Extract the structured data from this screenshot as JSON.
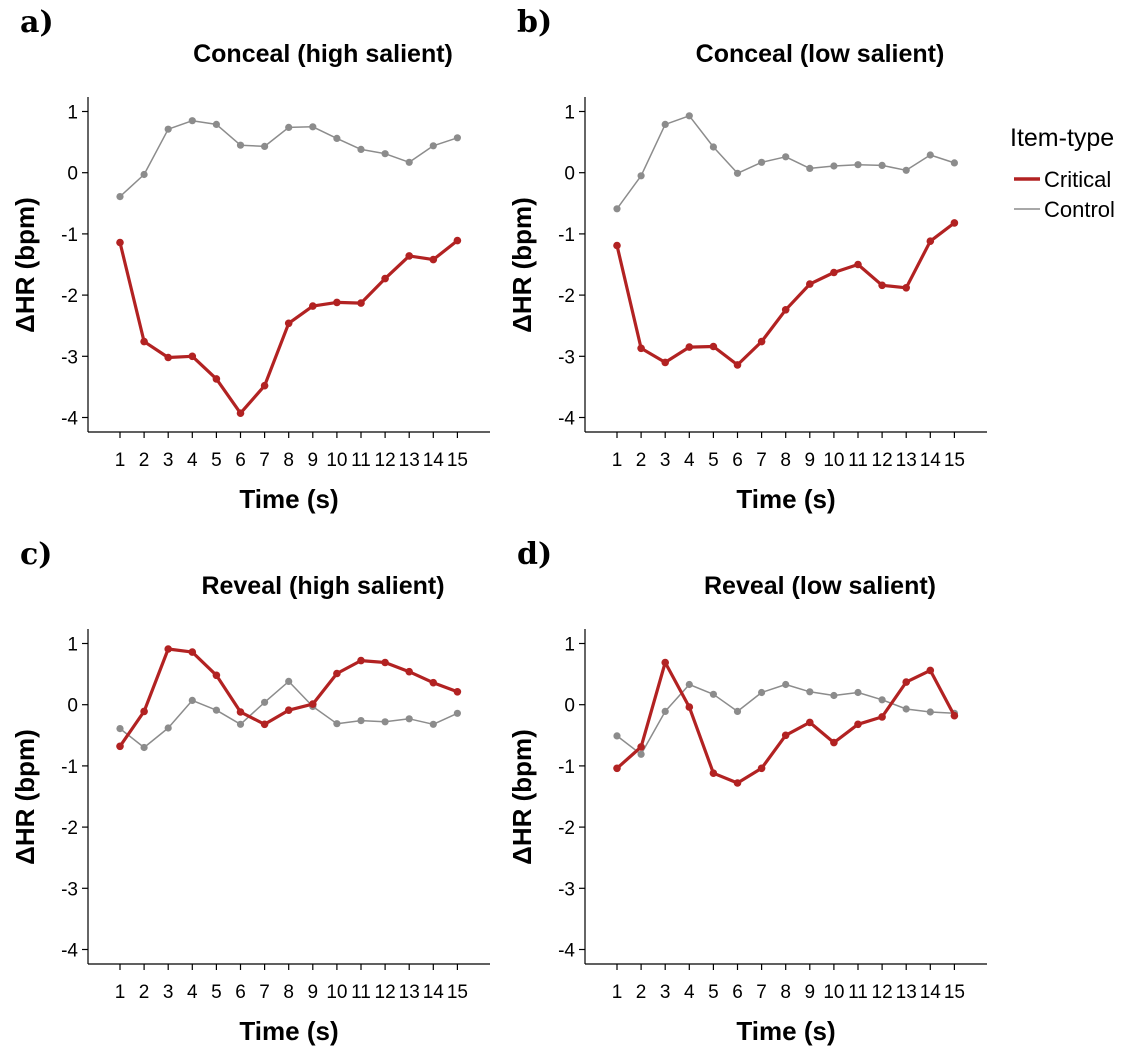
{
  "legend": {
    "title": "Item-type",
    "entries": [
      {
        "name": "Critical",
        "color": "#B22222"
      },
      {
        "name": "Control",
        "color": "#8C8C8C"
      }
    ]
  },
  "chart_data": [
    {
      "type": "line",
      "panel": "a)",
      "title": "Conceal (high salient)",
      "xlabel": "Time (s)",
      "ylabel": "ΔHR (bpm)",
      "x": [
        1,
        2,
        3,
        4,
        5,
        6,
        7,
        8,
        9,
        10,
        11,
        12,
        13,
        14,
        15
      ],
      "ylim": [
        -4.25,
        1.25
      ],
      "yticks": [
        1,
        0,
        -1,
        -2,
        -3,
        -4
      ],
      "series": [
        {
          "name": "Critical",
          "values": [
            -1.14,
            -2.76,
            -3.02,
            -3.0,
            -3.37,
            -3.93,
            -3.48,
            -2.46,
            -2.18,
            -2.12,
            -2.13,
            -1.73,
            -1.36,
            -1.42,
            -1.11
          ]
        },
        {
          "name": "Control",
          "values": [
            -0.39,
            -0.03,
            0.71,
            0.85,
            0.79,
            0.45,
            0.43,
            0.74,
            0.75,
            0.56,
            0.38,
            0.31,
            0.17,
            0.44,
            0.57
          ]
        }
      ]
    },
    {
      "type": "line",
      "panel": "b)",
      "title": "Conceal (low salient)",
      "xlabel": "Time (s)",
      "ylabel": "ΔHR (bpm)",
      "x": [
        1,
        2,
        3,
        4,
        5,
        6,
        7,
        8,
        9,
        10,
        11,
        12,
        13,
        14,
        15
      ],
      "ylim": [
        -4.25,
        1.25
      ],
      "yticks": [
        1,
        0,
        -1,
        -2,
        -3,
        -4
      ],
      "series": [
        {
          "name": "Critical",
          "values": [
            -1.19,
            -2.87,
            -3.1,
            -2.85,
            -2.84,
            -3.14,
            -2.76,
            -2.24,
            -1.82,
            -1.63,
            -1.5,
            -1.84,
            -1.88,
            -1.12,
            -0.82
          ]
        },
        {
          "name": "Control",
          "values": [
            -0.59,
            -0.05,
            0.79,
            0.93,
            0.42,
            -0.01,
            0.17,
            0.26,
            0.07,
            0.11,
            0.13,
            0.12,
            0.04,
            0.29,
            0.16
          ]
        }
      ]
    },
    {
      "type": "line",
      "panel": "c)",
      "title": "Reveal (high salient)",
      "xlabel": "Time (s)",
      "ylabel": "ΔHR (bpm)",
      "x": [
        1,
        2,
        3,
        4,
        5,
        6,
        7,
        8,
        9,
        10,
        11,
        12,
        13,
        14,
        15
      ],
      "ylim": [
        -4.25,
        1.25
      ],
      "yticks": [
        1,
        0,
        -1,
        -2,
        -3,
        -4
      ],
      "series": [
        {
          "name": "Critical",
          "values": [
            -0.68,
            -0.11,
            0.91,
            0.86,
            0.48,
            -0.12,
            -0.32,
            -0.09,
            0.01,
            0.51,
            0.72,
            0.69,
            0.54,
            0.36,
            0.21
          ]
        },
        {
          "name": "Control",
          "values": [
            -0.39,
            -0.7,
            -0.38,
            0.07,
            -0.09,
            -0.32,
            0.04,
            0.38,
            -0.03,
            -0.31,
            -0.26,
            -0.28,
            -0.23,
            -0.32,
            -0.14
          ]
        }
      ]
    },
    {
      "type": "line",
      "panel": "d)",
      "title": "Reveal (low salient)",
      "xlabel": "Time (s)",
      "ylabel": "ΔHR (bpm)",
      "x": [
        1,
        2,
        3,
        4,
        5,
        6,
        7,
        8,
        9,
        10,
        11,
        12,
        13,
        14,
        15
      ],
      "ylim": [
        -4.25,
        1.25
      ],
      "yticks": [
        1,
        0,
        -1,
        -2,
        -3,
        -4
      ],
      "series": [
        {
          "name": "Critical",
          "values": [
            -1.04,
            -0.69,
            0.69,
            -0.04,
            -1.12,
            -1.28,
            -1.04,
            -0.5,
            -0.29,
            -0.62,
            -0.32,
            -0.2,
            0.37,
            0.56,
            -0.18
          ]
        },
        {
          "name": "Control",
          "values": [
            -0.51,
            -0.81,
            -0.11,
            0.33,
            0.17,
            -0.11,
            0.2,
            0.33,
            0.21,
            0.15,
            0.2,
            0.08,
            -0.07,
            -0.12,
            -0.14
          ]
        }
      ]
    }
  ]
}
